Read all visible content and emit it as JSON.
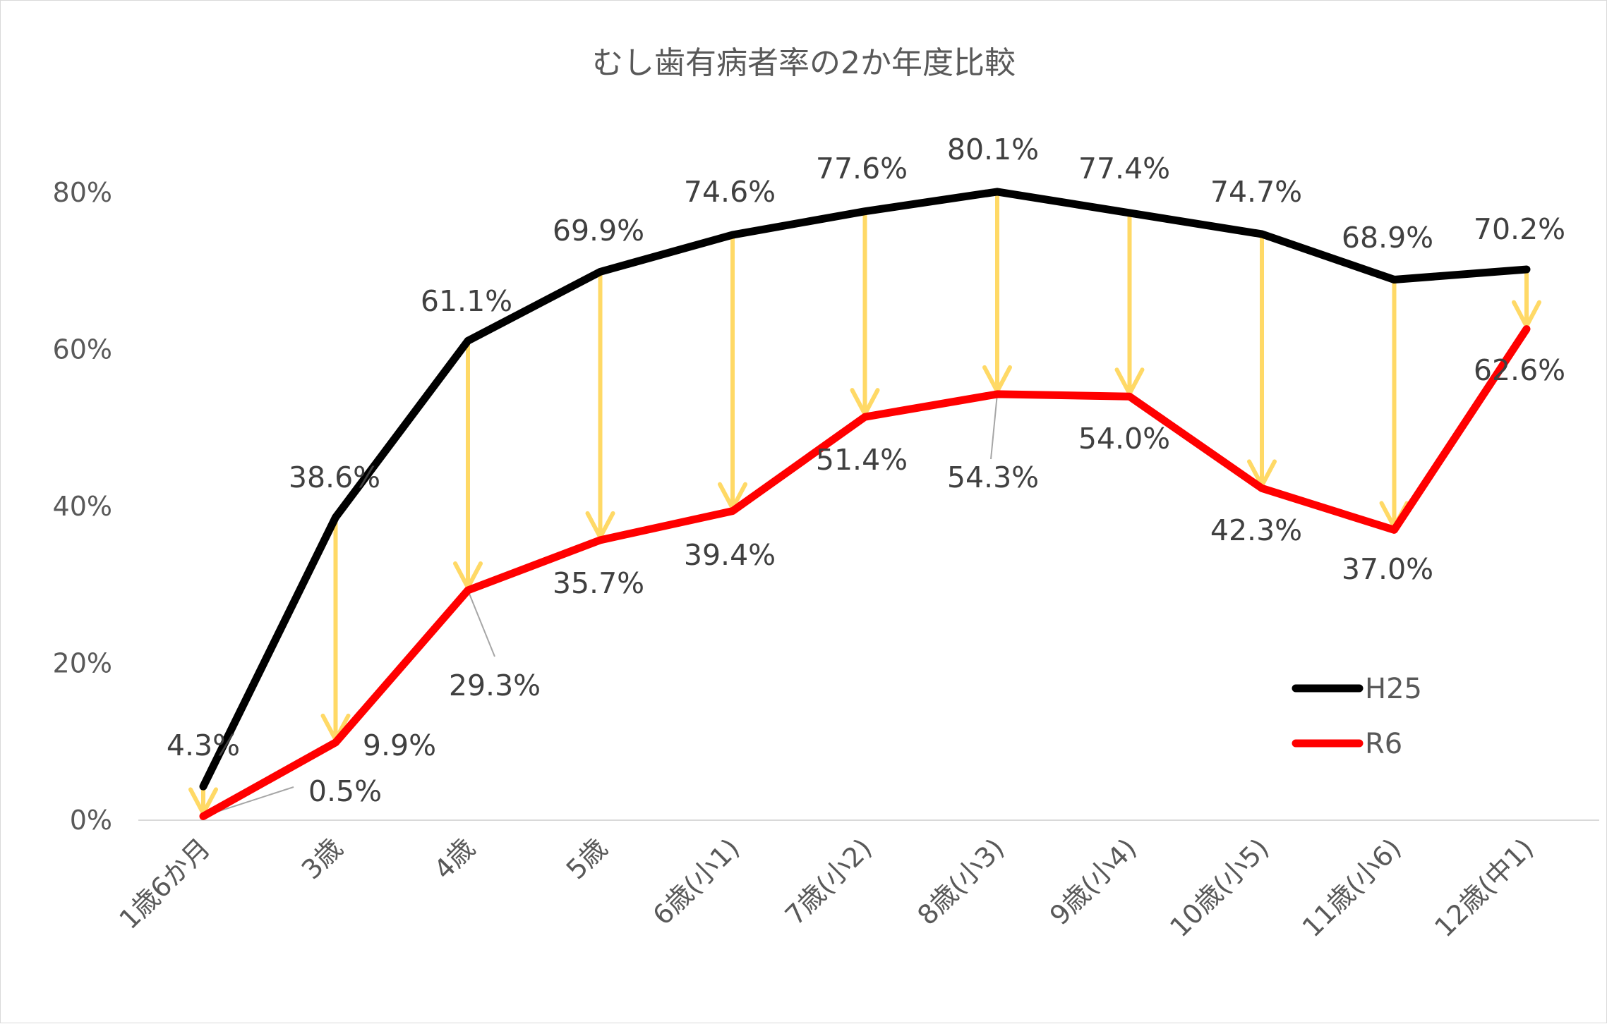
{
  "chart_data": {
    "type": "line",
    "title": "むし歯有病者率の2か年度比較",
    "xlabel": "",
    "ylabel": "",
    "categories": [
      "1歳6か月",
      "3歳",
      "4歳",
      "5歳",
      "6歳(小1)",
      "7歳(小2)",
      "8歳(小3)",
      "9歳(小4)",
      "10歳(小5)",
      "11歳(小6)",
      "12歳(中1)"
    ],
    "ylim": [
      0,
      80
    ],
    "yticks": [
      0,
      20,
      40,
      60,
      80
    ],
    "ytick_labels": [
      "0%",
      "20%",
      "40%",
      "60%",
      "80%"
    ],
    "grid": false,
    "legend_position": "bottom-right",
    "series": [
      {
        "name": "H25",
        "color": "#000000",
        "values": [
          4.3,
          38.6,
          61.1,
          69.9,
          74.6,
          77.6,
          80.1,
          77.4,
          74.7,
          68.9,
          70.2
        ],
        "labels": [
          "4.3%",
          "38.6%",
          "61.1%",
          "69.9%",
          "74.6%",
          "77.6%",
          "80.1%",
          "77.4%",
          "74.7%",
          "68.9%",
          "70.2%"
        ]
      },
      {
        "name": "R6",
        "color": "#ff0000",
        "values": [
          0.5,
          9.9,
          29.3,
          35.7,
          39.4,
          51.4,
          54.3,
          54.0,
          42.3,
          37.0,
          62.6
        ],
        "labels": [
          "0.5%",
          "9.9%",
          "29.3%",
          "35.7%",
          "39.4%",
          "51.4%",
          "54.3%",
          "54.0%",
          "42.3%",
          "37.0%",
          "62.6%"
        ]
      }
    ],
    "annotation_arrow_color": "#ffd966"
  }
}
